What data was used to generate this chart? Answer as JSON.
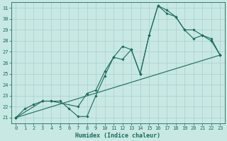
{
  "xlabel": "Humidex (Indice chaleur)",
  "xlim": [
    -0.5,
    23.5
  ],
  "ylim": [
    20.5,
    31.5
  ],
  "xticks": [
    0,
    1,
    2,
    3,
    4,
    5,
    6,
    7,
    8,
    9,
    10,
    11,
    12,
    13,
    14,
    15,
    16,
    17,
    18,
    19,
    20,
    21,
    22,
    23
  ],
  "yticks": [
    21,
    22,
    23,
    24,
    25,
    26,
    27,
    28,
    29,
    30,
    31
  ],
  "bg_color": "#c8e8e4",
  "grid_color": "#a8d0cc",
  "line_color": "#1a6b5a",
  "lines": [
    {
      "x": [
        0,
        1,
        2,
        3,
        4,
        5,
        6,
        7,
        8,
        9,
        10,
        11,
        12,
        13,
        14,
        15,
        16,
        17,
        18,
        19,
        20,
        21,
        22,
        23
      ],
      "y": [
        21,
        21.8,
        22.2,
        22.5,
        22.5,
        22.5,
        21.8,
        21.1,
        21.1,
        23.0,
        24.8,
        26.5,
        26.3,
        27.2,
        25.0,
        28.5,
        31.2,
        30.5,
        30.2,
        29.0,
        28.2,
        28.5,
        28.0,
        26.7
      ]
    },
    {
      "x": [
        0,
        3,
        4,
        7,
        8,
        9,
        10,
        11,
        12,
        13,
        14,
        15,
        16,
        17,
        18,
        19,
        20,
        21,
        22,
        23
      ],
      "y": [
        21,
        22.5,
        22.5,
        22.0,
        23.2,
        23.5,
        25.2,
        26.5,
        27.5,
        27.2,
        25.0,
        28.5,
        31.2,
        30.8,
        30.2,
        29.0,
        29.0,
        28.5,
        28.2,
        26.7
      ]
    },
    {
      "x": [
        0,
        23
      ],
      "y": [
        21,
        26.7
      ]
    }
  ],
  "tick_fontsize": 5.0,
  "xlabel_fontsize": 6.0
}
